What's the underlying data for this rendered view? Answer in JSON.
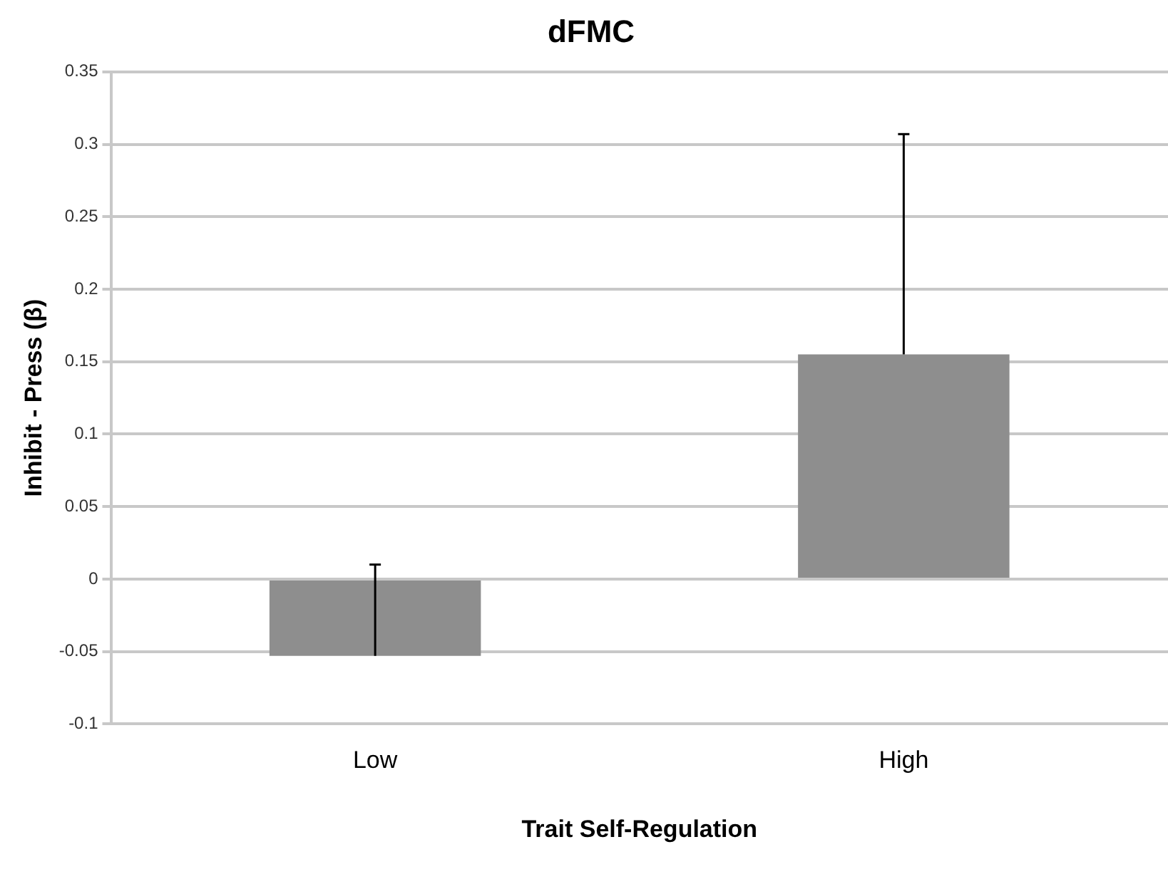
{
  "chart_data": {
    "type": "bar",
    "title": "dFMC",
    "xlabel": "Trait Self-Regulation",
    "ylabel": "Inhibit - Press (β)",
    "categories": [
      "Low",
      "High"
    ],
    "values": [
      -0.053,
      0.155
    ],
    "errors": [
      [
        -0.053,
        0.01
      ],
      [
        0.155,
        0.307
      ]
    ],
    "color": "#8e8e8e",
    "ylim": [
      -0.1,
      0.35
    ],
    "yticks": [
      -0.1,
      -0.05,
      0,
      0.05,
      0.1,
      0.15,
      0.2,
      0.25,
      0.3,
      0.35
    ],
    "grid": "y",
    "legend": false
  }
}
